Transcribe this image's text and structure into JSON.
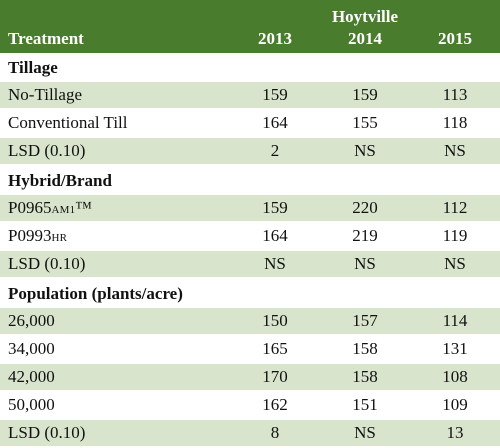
{
  "location": "Hoytville",
  "header": {
    "treatment": "Treatment",
    "years": [
      "2013",
      "2014",
      "2015"
    ]
  },
  "sections": [
    {
      "title": "Tillage",
      "rows": [
        {
          "label": "No-Tillage",
          "values": [
            "159",
            "159",
            "113"
          ]
        },
        {
          "label": "Conventional Till",
          "values": [
            "164",
            "155",
            "118"
          ]
        },
        {
          "label": "LSD (0.10)",
          "values": [
            "2",
            "NS",
            "NS"
          ]
        }
      ]
    },
    {
      "title": "Hybrid/Brand",
      "rows": [
        {
          "label": "P0965",
          "label_suffix": "AM1",
          "label_mark": "™",
          "values": [
            "159",
            "220",
            "112"
          ]
        },
        {
          "label": "P0993",
          "label_suffix": "HR",
          "values": [
            "164",
            "219",
            "119"
          ]
        },
        {
          "label": "LSD (0.10)",
          "values": [
            "NS",
            "NS",
            "NS"
          ]
        }
      ]
    },
    {
      "title": "Population (plants/acre)",
      "rows": [
        {
          "label": "26,000",
          "values": [
            "150",
            "157",
            "114"
          ]
        },
        {
          "label": "34,000",
          "values": [
            "165",
            "158",
            "131"
          ]
        },
        {
          "label": "42,000",
          "values": [
            "170",
            "158",
            "108"
          ]
        },
        {
          "label": "50,000",
          "values": [
            "162",
            "151",
            "109"
          ]
        },
        {
          "label": "LSD (0.10)",
          "values": [
            "8",
            "NS",
            "13"
          ]
        }
      ]
    }
  ],
  "colors": {
    "header_bg": "#4a7c2d",
    "header_text": "#ffffff",
    "row_shade": "#d8e4cb"
  }
}
